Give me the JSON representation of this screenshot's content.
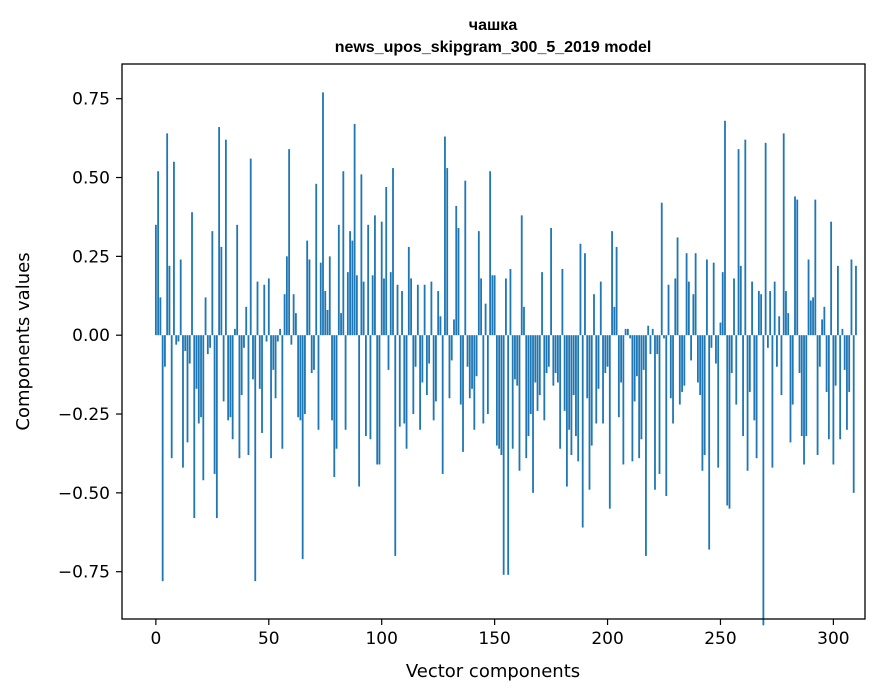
{
  "chart_data": {
    "type": "bar",
    "title_line1": "чашка",
    "title_line2": "news_upos_skipgram_300_5_2019 model",
    "xlabel": "Vector components",
    "ylabel": "Components values",
    "xlim": [
      -15,
      314
    ],
    "ylim": [
      -0.9,
      0.86
    ],
    "xticks": [
      0,
      50,
      100,
      150,
      200,
      250,
      300
    ],
    "yticks": [
      -0.75,
      -0.5,
      -0.25,
      0.0,
      0.25,
      0.5,
      0.75
    ],
    "ytick_labels": [
      "−0.75",
      "−0.50",
      "−0.25",
      "0.00",
      "0.25",
      "0.50",
      "0.75"
    ],
    "bar_color": "#1f77b4",
    "values": [
      0.35,
      0.52,
      0.12,
      -0.78,
      -0.1,
      0.64,
      0.22,
      -0.39,
      0.55,
      -0.03,
      -0.02,
      0.24,
      -0.42,
      -0.05,
      -0.34,
      -0.09,
      0.39,
      -0.58,
      -0.17,
      -0.28,
      -0.26,
      -0.46,
      0.12,
      -0.06,
      -0.04,
      0.33,
      -0.44,
      -0.58,
      0.66,
      0.28,
      -0.21,
      0.62,
      -0.27,
      -0.26,
      -0.33,
      0.02,
      0.35,
      -0.39,
      -0.19,
      -0.04,
      0.09,
      -0.38,
      0.56,
      -0.14,
      -0.78,
      0.17,
      -0.17,
      -0.31,
      0.16,
      -0.02,
      0.18,
      -0.39,
      -0.11,
      -0.2,
      -0.02,
      0.02,
      -0.36,
      0.13,
      0.25,
      0.59,
      -0.03,
      0.13,
      0.07,
      -0.26,
      -0.27,
      -0.71,
      -0.25,
      0.3,
      0.24,
      -0.12,
      -0.11,
      0.48,
      -0.3,
      0.23,
      0.77,
      0.14,
      0.08,
      0.25,
      -0.27,
      -0.45,
      -0.36,
      0.35,
      0.07,
      0.52,
      -0.3,
      0.2,
      0.33,
      0.3,
      0.67,
      0.19,
      -0.48,
      0.51,
      0.17,
      -0.32,
      0.35,
      -0.33,
      0.19,
      0.38,
      -0.41,
      -0.41,
      0.36,
      0.18,
      0.47,
      -0.11,
      0.2,
      0.53,
      -0.7,
      0.16,
      -0.29,
      0.14,
      -0.28,
      -0.36,
      0.28,
      0.18,
      -0.25,
      -0.1,
      0.16,
      -0.3,
      -0.15,
      0.16,
      -0.19,
      -0.09,
      0.17,
      -0.27,
      -0.21,
      0.14,
      0.06,
      -0.44,
      0.63,
      0.53,
      -0.2,
      -0.08,
      0.05,
      0.41,
      0.34,
      -0.22,
      -0.37,
      0.49,
      -0.1,
      -0.2,
      -0.17,
      -0.3,
      -0.13,
      0.33,
      0.18,
      -0.28,
      0.1,
      -0.25,
      0.52,
      0.19,
      0.19,
      -0.35,
      -0.36,
      -0.38,
      -0.76,
      0.18,
      -0.76,
      0.21,
      -0.36,
      -0.14,
      -0.16,
      -0.43,
      0.38,
      0.09,
      -0.39,
      -0.32,
      -0.25,
      -0.5,
      -0.15,
      -0.24,
      -0.19,
      0.2,
      -0.27,
      -0.12,
      -0.1,
      0.34,
      -0.16,
      -0.12,
      -0.15,
      -0.36,
      0.21,
      -0.24,
      -0.48,
      -0.3,
      -0.38,
      -0.19,
      -0.32,
      -0.4,
      0.29,
      -0.61,
      0.26,
      -0.2,
      -0.49,
      -0.35,
      0.13,
      -0.28,
      -0.17,
      0.17,
      -0.28,
      -0.12,
      -0.1,
      -0.55,
      0.33,
      0.09,
      0.28,
      -0.26,
      -0.15,
      -0.41,
      0.02,
      0.02,
      -0.01,
      -0.4,
      -0.21,
      -0.13,
      -0.39,
      -0.33,
      -0.11,
      -0.7,
      0.03,
      -0.06,
      0.02,
      -0.49,
      -0.06,
      -0.44,
      0.42,
      -0.01,
      -0.51,
      0.16,
      -0.2,
      -0.28,
      0.18,
      0.31,
      -0.22,
      -0.18,
      -0.16,
      0.26,
      0.17,
      -0.08,
      0.13,
      0.26,
      -0.15,
      -0.19,
      -0.43,
      -0.38,
      0.24,
      -0.68,
      -0.04,
      0.23,
      -0.09,
      -0.42,
      0.04,
      0.2,
      0.68,
      -0.54,
      -0.55,
      -0.12,
      0.18,
      -0.22,
      0.59,
      0.22,
      -0.32,
      0.62,
      -0.43,
      -0.18,
      0.17,
      -0.27,
      -0.39,
      0.14,
      0.13,
      -0.92,
      0.61,
      -0.04,
      0.14,
      -0.42,
      0.17,
      -0.1,
      0.06,
      -0.19,
      0.64,
      0.14,
      0.07,
      -0.34,
      -0.22,
      0.44,
      0.43,
      -0.12,
      -0.32,
      -0.41,
      -0.32,
      0.24,
      0.11,
      0.12,
      0.43,
      -0.38,
      -0.1,
      0.05,
      0.09,
      -0.18,
      -0.33,
      0.36,
      -0.41,
      -0.16,
      0.22,
      -0.33,
      0.02,
      -0.11,
      -0.3,
      -0.18,
      0.24,
      -0.5,
      0.22
    ]
  }
}
